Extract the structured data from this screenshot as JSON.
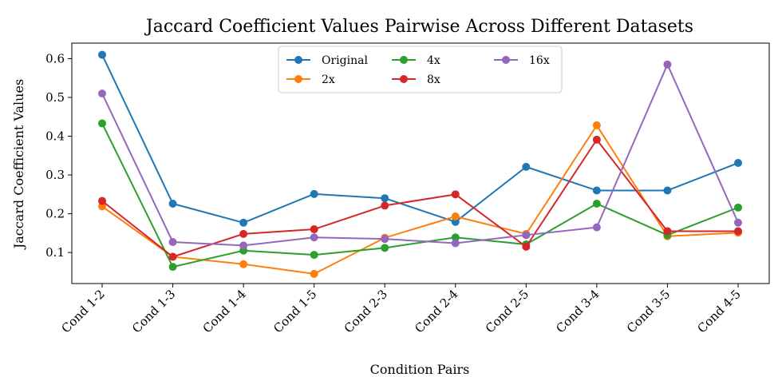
{
  "chart_data": {
    "type": "line",
    "title": "Jaccard Coefficient Values Pairwise Across Different Datasets",
    "xlabel": "Condition Pairs",
    "ylabel": "Jaccard Coefficient Values",
    "categories": [
      "Cond 1-2",
      "Cond 1-3",
      "Cond 1-4",
      "Cond 1-5",
      "Cond 2-3",
      "Cond 2-4",
      "Cond 2-5",
      "Cond 3-4",
      "Cond 3-5",
      "Cond 4-5"
    ],
    "ylim": [
      0.02,
      0.64
    ],
    "yticks": [
      0.1,
      0.2,
      0.3,
      0.4,
      0.5,
      0.6
    ],
    "ytick_labels": [
      "0.1",
      "0.2",
      "0.3",
      "0.4",
      "0.5",
      "0.6"
    ],
    "grid": false,
    "legend_position": "top-center",
    "series": [
      {
        "name": "Original",
        "color": "#1f77b4",
        "values": [
          0.61,
          0.226,
          0.177,
          0.251,
          0.24,
          0.179,
          0.321,
          0.26,
          0.26,
          0.331
        ]
      },
      {
        "name": "2x",
        "color": "#ff7f0e",
        "values": [
          0.219,
          0.089,
          0.07,
          0.045,
          0.138,
          0.193,
          0.148,
          0.428,
          0.142,
          0.151
        ]
      },
      {
        "name": "4x",
        "color": "#2ca02c",
        "values": [
          0.433,
          0.063,
          0.105,
          0.094,
          0.112,
          0.139,
          0.121,
          0.226,
          0.145,
          0.216
        ]
      },
      {
        "name": "8x",
        "color": "#d62728",
        "values": [
          0.233,
          0.089,
          0.148,
          0.16,
          0.221,
          0.25,
          0.115,
          0.391,
          0.155,
          0.155
        ]
      },
      {
        "name": "16x",
        "color": "#9467bd",
        "values": [
          0.51,
          0.127,
          0.118,
          0.139,
          0.135,
          0.124,
          0.145,
          0.165,
          0.585,
          0.177
        ]
      }
    ]
  }
}
